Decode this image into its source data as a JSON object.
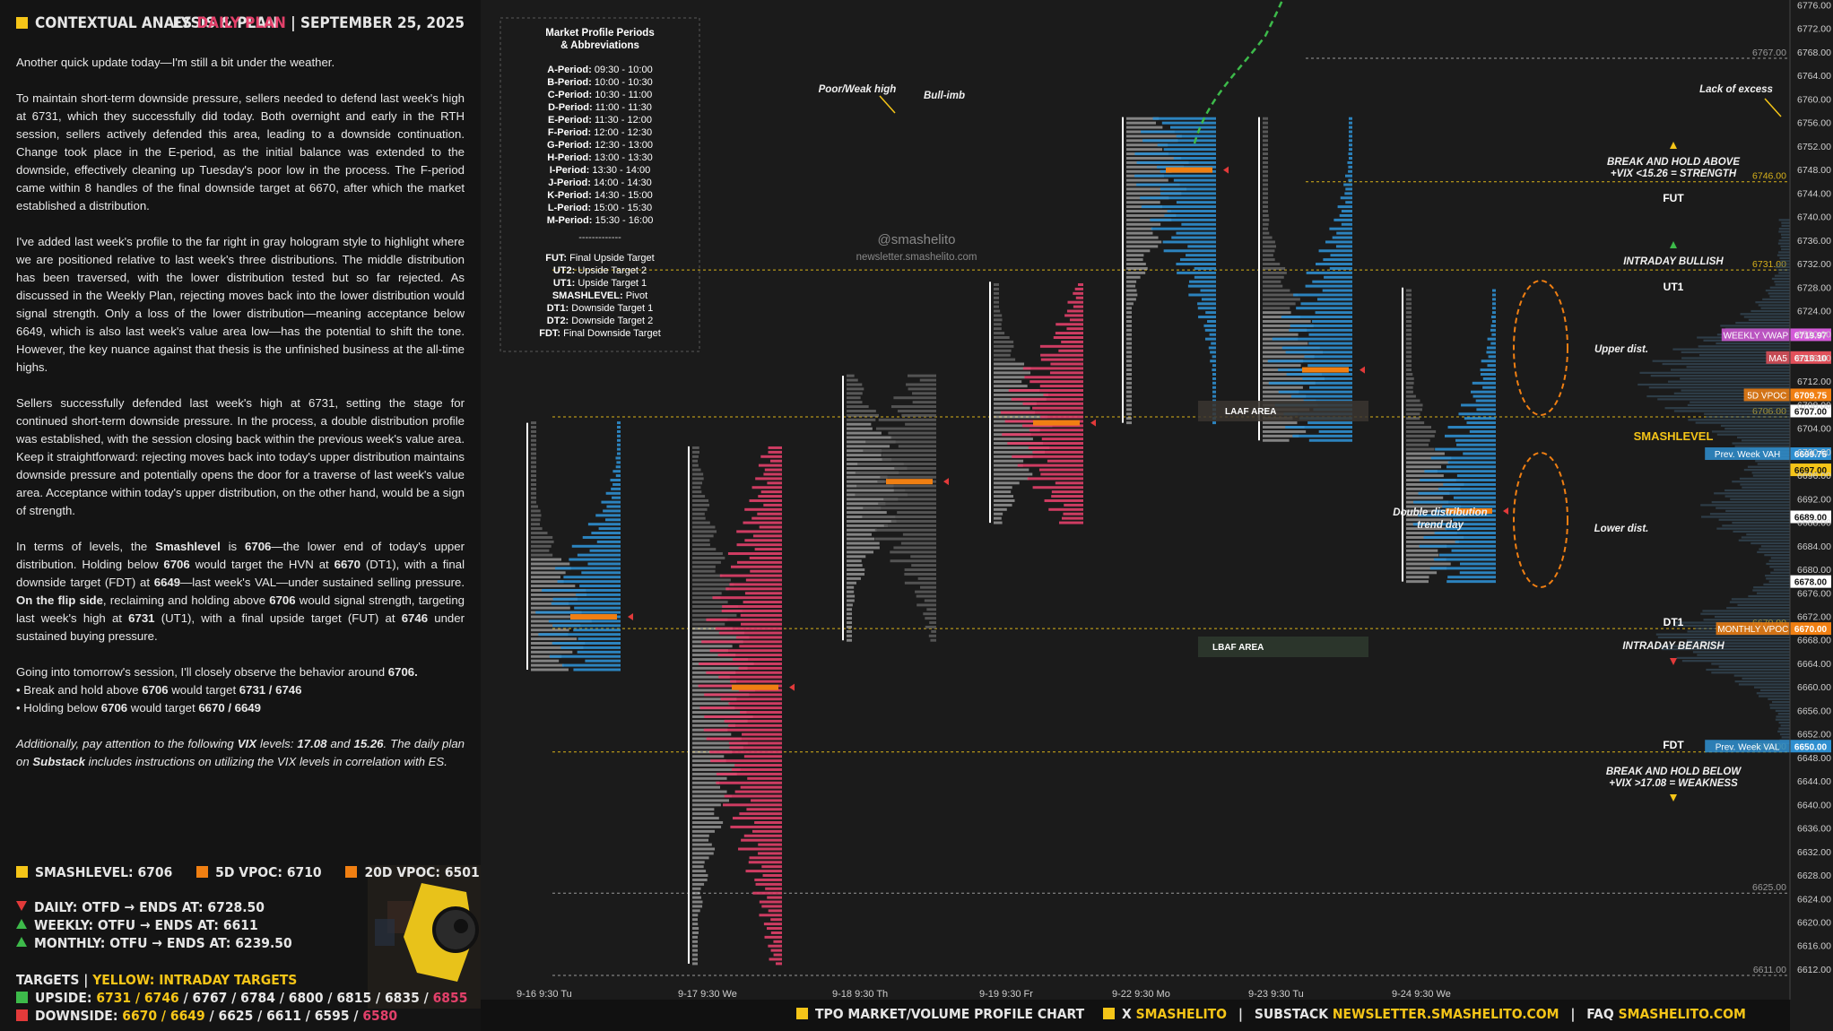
{
  "header": {
    "left_title": "CONTEXTUAL ANALYSIS & PLAN",
    "symbol": "ES",
    "plan_label": "DAILY PLAN",
    "divider": "|",
    "date": "SEPTEMBER 25, 2025"
  },
  "article": {
    "p1": "Another quick update today—I'm still a bit under the weather.",
    "p2": "To maintain short-term downside pressure, sellers needed to defend last week's high at 6731, which they successfully did today. Both overnight and early in the RTH session, sellers actively defended this area, leading to a downside continuation. Change took place in the E-period, as the initial balance was extended to the downside, effectively cleaning up Tuesday's poor low in the process. The F-period came within 8 handles of the final downside target at 6670, after which the market established a distribution.",
    "p3": "I've added last week's profile to the far right in gray hologram style to highlight where we are positioned relative to last week's three distributions. The middle distribution has been traversed, with the lower distribution tested but so far rejected. As discussed in the Weekly Plan, rejecting moves back into the lower distribution would signal strength. Only a loss of the lower distribution—meaning acceptance below 6649, which is also last week's value area low—has the potential to shift the tone. However, the key nuance against that thesis is the unfinished business at the all-time highs.",
    "p4": "Sellers successfully defended last week's high at 6731, setting the stage for continued short-term downside pressure. In the process, a double distribution profile was established, with the session closing back within the previous week's value area. Keep it straightforward: rejecting moves back into today's upper distribution maintains downside pressure and potentially opens the door for a traverse of last week's value area. Acceptance within today's upper distribution, on the other hand, would be a sign of strength.",
    "p5": {
      "t1": "In terms of levels, the ",
      "b1": "Smashlevel",
      "t2": " is ",
      "b2": "6706",
      "t3": "—the lower end of today's upper distribution. Holding below ",
      "b3": "6706",
      "t4": " would target the HVN at ",
      "b4": "6670",
      "t5": " (DT1), with a final downside target (FDT) at ",
      "b5": "6649",
      "t6": "—last week's VAL—under sustained selling pressure. ",
      "b6": "On the flip side",
      "t7": ", reclaiming and holding above ",
      "b7": "6706",
      "t8": " would signal strength, targeting last week's high at ",
      "b8": "6731",
      "t9": " (UT1), with a final upside target (FUT) at ",
      "b9": "6746",
      "t10": " under sustained buying pressure."
    },
    "p6": {
      "intro_t": "Going into tomorrow's session, I'll closely observe the behavior around ",
      "intro_b": "6706.",
      "l1_t": "• Break and hold above ",
      "l1_b1": "6706",
      "l1_m": " would target ",
      "l1_b2": "6731 / 6746",
      "l2_t": "• Holding below ",
      "l2_b1": "6706",
      "l2_m": " would target ",
      "l2_b2": "6670 / 6649"
    },
    "p7": {
      "t1": "Additionally, pay attention to the following ",
      "b1": "VIX",
      "t2": " levels: ",
      "b2": "17.08",
      "t3": " and ",
      "b3": "15.26",
      "t4": ". The daily plan on ",
      "b4": "Substack",
      "t5": " includes instructions on utilizing the VIX levels in correlation with ES."
    }
  },
  "levels": {
    "smashlevel": "SMASHLEVEL: 6706",
    "vpoc5d": "5D VPOC: 6710",
    "vpoc20d": "20D VPOC: 6501"
  },
  "trends": {
    "daily": "DAILY: OTFD → ENDS AT: 6728.50",
    "weekly": "WEEKLY: OTFU → ENDS AT: 6611",
    "monthly": "MONTHLY: OTFU → ENDS AT: 6239.50"
  },
  "targets": {
    "title": "TARGETS",
    "divider": "|",
    "yellow_label": "YELLOW: INTRADAY TARGETS",
    "upside_label": "UPSIDE:",
    "upside_yellow": "6731 / 6746",
    "upside_white": "/ 6767 / 6784 / 6800 / 6815 / 6835 /",
    "upside_red": "6855",
    "downside_label": "DOWNSIDE:",
    "downside_yellow": "6670 / 6649",
    "downside_white": "/ 6625 / 6611 / 6595 /",
    "downside_red": "6580"
  },
  "footer": {
    "chart_label": "TPO MARKET/VOLUME PROFILE CHART",
    "x_label": "X",
    "x_handle": "SMASHELITO",
    "substack_label": "SUBSTACK",
    "substack_url": "NEWSLETTER.SMASHELITO.COM",
    "faq_label": "FAQ",
    "faq_url": "SMASHELITO.COM",
    "divider": "|"
  },
  "legend_box": {
    "title1": "Market Profile Periods",
    "title2": "& Abbreviations",
    "periods": [
      {
        "k": "A-Period",
        "v": "09:30 - 10:00"
      },
      {
        "k": "B-Period",
        "v": "10:00 - 10:30"
      },
      {
        "k": "C-Period",
        "v": "10:30 - 11:00"
      },
      {
        "k": "D-Period",
        "v": "11:00 - 11:30"
      },
      {
        "k": "E-Period",
        "v": "11:30 - 12:00"
      },
      {
        "k": "F-Period",
        "v": "12:00 - 12:30"
      },
      {
        "k": "G-Period",
        "v": "12:30 - 13:00"
      },
      {
        "k": "H-Period",
        "v": "13:00 - 13:30"
      },
      {
        "k": "I-Period",
        "v": "13:30 - 14:00"
      },
      {
        "k": "J-Period",
        "v": "14:00 - 14:30"
      },
      {
        "k": "K-Period",
        "v": "14:30 - 15:00"
      },
      {
        "k": "L-Period",
        "v": "15:00 - 15:30"
      },
      {
        "k": "M-Period",
        "v": "15:30 - 16:00"
      }
    ],
    "divider": "-------------",
    "abbrs": [
      {
        "k": "FUT",
        "v": "Final Upside Target"
      },
      {
        "k": "UT2",
        "v": "Upside Target 2"
      },
      {
        "k": "UT1",
        "v": "Upside Target 1"
      },
      {
        "k": "SMASHLEVEL",
        "v": "Pivot"
      },
      {
        "k": "DT1",
        "v": "Downside Target 1"
      },
      {
        "k": "DT2",
        "v": "Downside Target 2"
      },
      {
        "k": "FDT",
        "v": "Final Downside Target"
      }
    ]
  },
  "watermark": {
    "handle": "@smashelito",
    "url": "newsletter.smashelito.com"
  },
  "chart_data": {
    "type": "market_profile",
    "y_min": 6611,
    "y_max": 6776,
    "y_ticks": [
      6612,
      6616,
      6620,
      6624,
      6628,
      6632,
      6636,
      6640,
      6644,
      6648,
      6652,
      6656,
      6660,
      6664,
      6668,
      6672,
      6676,
      6680,
      6684,
      6688,
      6692,
      6696,
      6700,
      6704,
      6708,
      6712,
      6716,
      6720,
      6724,
      6728,
      6732,
      6736,
      6740,
      6744,
      6748,
      6752,
      6756,
      6760,
      6764,
      6768,
      6772,
      6776
    ],
    "sessions": [
      {
        "label": "9-16  9:30 Tu",
        "high": 6705,
        "low": 6663,
        "poc": 6672
      },
      {
        "label": "9-17  9:30 We",
        "high": 6701,
        "low": 6613,
        "poc": 6660
      },
      {
        "label": "9-18  9:30 Th",
        "high": 6713,
        "low": 6668,
        "poc": 6695
      },
      {
        "label": "9-19  9:30 Fr",
        "high": 6729,
        "low": 6688,
        "poc": 6705
      },
      {
        "label": "9-22  9:30 Mo",
        "high": 6757,
        "low": 6705,
        "poc": 6748
      },
      {
        "label": "9-23  9:30 Tu",
        "high": 6757,
        "low": 6702,
        "poc": 6714
      },
      {
        "label": "9-24  9:30 We",
        "high": 6728,
        "low": 6678,
        "poc": 6690
      }
    ],
    "horizontal_levels": [
      {
        "value": 6767.0,
        "label": "6767.00",
        "style": "white-dashed"
      },
      {
        "value": 6746.0,
        "label": "6746.00",
        "style": "yellow-dashed"
      },
      {
        "value": 6731.0,
        "label": "6731.00",
        "style": "yellow-dashed"
      },
      {
        "value": 6706.0,
        "label": "6706.00",
        "style": "yellow-dashed"
      },
      {
        "value": 6670.0,
        "label": "6670.00",
        "style": "yellow-dashed"
      },
      {
        "value": 6649.0,
        "label": "6649.00",
        "style": "yellow-dashed"
      },
      {
        "value": 6625.0,
        "label": "6625.00",
        "style": "white-dashed"
      },
      {
        "value": 6611.0,
        "label": "6611.00",
        "style": "white-dashed"
      }
    ],
    "price_tags": [
      {
        "value": 6719.97,
        "label": "WEEKLY VWAP",
        "text": "6719.97",
        "color": "#d35ad8"
      },
      {
        "value": 6716.1,
        "label": "MA5",
        "text": "6716.10",
        "color": "#e2505a"
      },
      {
        "value": 6709.75,
        "label": "5D VPOC",
        "text": "6709.75",
        "color": "#f07f12"
      },
      {
        "value": 6707.0,
        "label": "",
        "text": "6707.00",
        "color": "#ffffff"
      },
      {
        "value": 6699.75,
        "label": "Prev. Week VAH",
        "text": "6699.75",
        "color": "#2f8fd0"
      },
      {
        "value": 6697.0,
        "label": "",
        "text": "6697.00",
        "color": "#f5c518"
      },
      {
        "value": 6689.0,
        "label": "",
        "text": "6689.00",
        "color": "#ffffff"
      },
      {
        "value": 6678.0,
        "label": "",
        "text": "6678.00",
        "color": "#ffffff"
      },
      {
        "value": 6670.0,
        "label": "MONTHLY VPOC",
        "text": "6670.00",
        "color": "#f07f12"
      },
      {
        "value": 6650.0,
        "label": "Prev. Week VAL",
        "text": "6650.00",
        "color": "#2f8fd0"
      }
    ],
    "annotations": {
      "poor_high": "Poor/Weak high",
      "bull_imb": "Bull-imb",
      "lack_excess": "Lack of excess",
      "break_above_1": "BREAK AND HOLD ABOVE",
      "break_above_2": "+VIX <15.26 = STRENGTH",
      "fut": "FUT",
      "intraday_bullish": "INTRADAY BULLISH",
      "ut1": "UT1",
      "upper_dist": "Upper dist.",
      "laaf": "LAAF AREA",
      "smashlevel": "SMASHLEVEL",
      "double_dist_1": "Double distribution",
      "double_dist_2": "trend day",
      "lower_dist": "Lower dist.",
      "dt1": "DT1",
      "lbaf": "LBAF AREA",
      "intraday_bearish": "INTRADAY BEARISH",
      "fdt": "FDT",
      "break_below_1": "BREAK AND HOLD BELOW",
      "break_below_2": "+VIX >17.08 = WEAKNESS"
    }
  },
  "colors": {
    "yellow": "#f5c518",
    "orange": "#f07f12",
    "red": "#e23a3a",
    "pink": "#e2406a",
    "blue": "#2f8fd0",
    "green": "#3dba4a"
  }
}
